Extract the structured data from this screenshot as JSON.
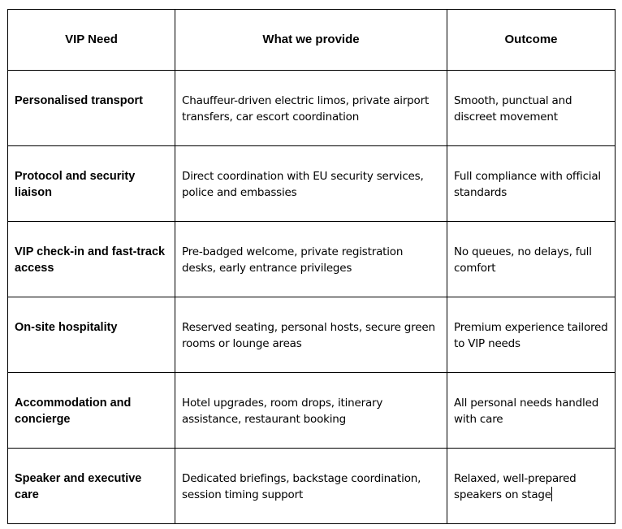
{
  "table": {
    "headers": {
      "need": "VIP Need",
      "provide": "What we provide",
      "outcome": "Outcome"
    },
    "rows": [
      {
        "need": "Personalised transport",
        "provide": "Chauffeur-driven electric limos, private airport transfers, car escort coordination",
        "outcome": "Smooth, punctual and discreet movement"
      },
      {
        "need": "Protocol and security liaison",
        "provide": "Direct coordination with EU security services, police and embassies",
        "outcome": "Full compliance with official standards"
      },
      {
        "need": "VIP check-in and fast-track access",
        "provide": "Pre-badged welcome, private registration desks, early entrance privileges",
        "outcome": "No queues, no delays, full comfort"
      },
      {
        "need": "On-site hospitality",
        "provide": "Reserved seating, personal hosts, secure green rooms or lounge areas",
        "outcome": "Premium experience tailored to VIP needs"
      },
      {
        "need": "Accommodation and concierge",
        "provide": "Hotel upgrades, room drops, itinerary assistance, restaurant booking",
        "outcome": "All personal needs handled with care"
      },
      {
        "need": "Speaker and executive care",
        "provide": "Dedicated briefings, backstage coordination, session timing support",
        "outcome": "Relaxed, well-prepared speakers on stage"
      }
    ]
  }
}
